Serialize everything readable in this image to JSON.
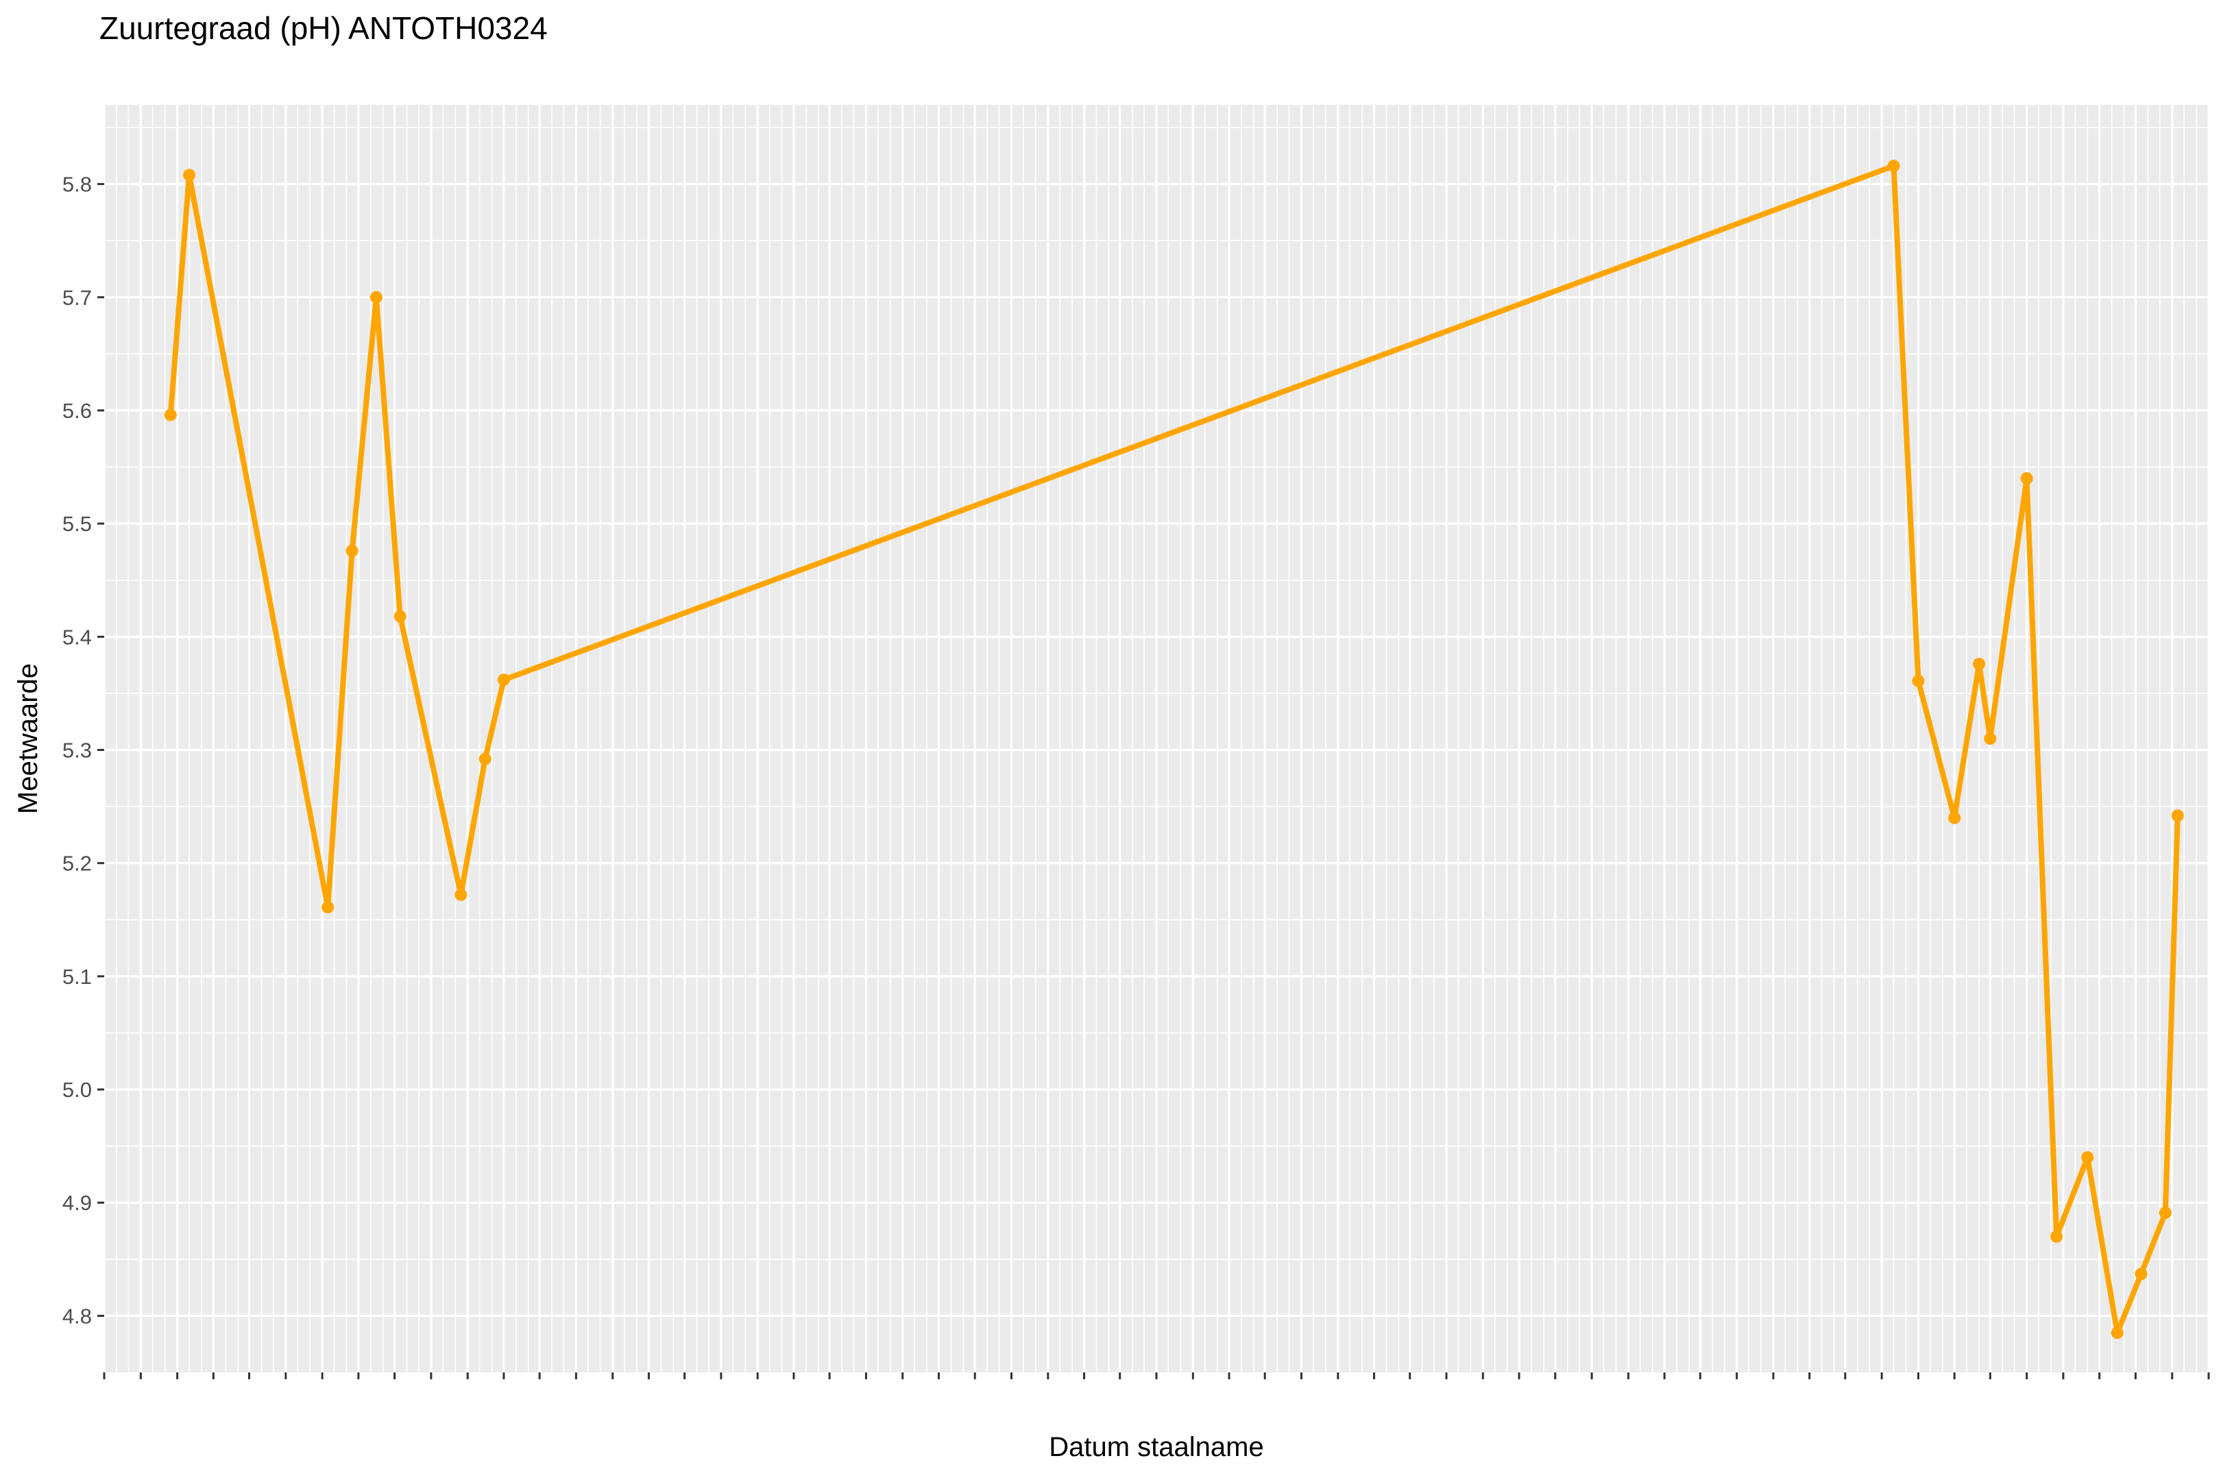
{
  "chart_data": {
    "type": "line",
    "title": "Zuurtegraad (pH) ANTOTH0324",
    "xlabel": "Datum staalname",
    "ylabel": "Meetwaarde",
    "ylim": [
      4.75,
      5.87
    ],
    "yticks": [
      4.8,
      4.9,
      5.0,
      5.1,
      5.2,
      5.3,
      5.4,
      5.5,
      5.6,
      5.7,
      5.8
    ],
    "ytick_labels": [
      "4.8",
      "4.9",
      "5.0",
      "5.1",
      "5.2",
      "5.3",
      "5.4",
      "5.5",
      "5.6",
      "5.7",
      "5.8"
    ],
    "x_date_range": [
      "2010-03-01",
      "2024-09-01"
    ],
    "x_tick_labels_overlapping": true,
    "grid": true,
    "panel_background": "#ebebeb",
    "line_color": "#ffa500",
    "series": [
      {
        "x": [
          "2010-08-15",
          "2010-10-01",
          "2011-09-15",
          "2011-11-15",
          "2012-01-15",
          "2012-03-15",
          "2012-08-15",
          "2012-10-15",
          "2012-12-01",
          "2022-07-01",
          "2022-09-01",
          "2022-12-01",
          "2023-02-01",
          "2023-03-01",
          "2023-06-01",
          "2023-08-15",
          "2023-11-01",
          "2024-01-15",
          "2024-03-15",
          "2024-05-15",
          "2024-06-15"
        ],
        "y": [
          5.596,
          5.808,
          5.161,
          5.476,
          5.7,
          5.418,
          5.172,
          5.292,
          5.362,
          5.816,
          5.361,
          5.24,
          5.376,
          5.31,
          5.54,
          4.87,
          4.94,
          4.785,
          4.837,
          4.891,
          5.242
        ]
      }
    ]
  }
}
